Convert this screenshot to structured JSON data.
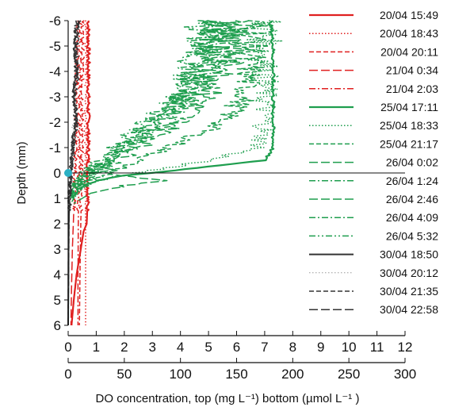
{
  "chart_data": {
    "type": "line",
    "orientation": "depth-profile",
    "ylabel": "Depth (mm)",
    "xlabel": "DO concentration, top (mg L⁻¹) bottom (µmol L⁻¹ )",
    "ylim": [
      -6,
      6
    ],
    "y_inverted": true,
    "xlim_top_mg_per_L": [
      0,
      12
    ],
    "xlim_bottom_umol_per_L": [
      0,
      300
    ],
    "y_ticks": [
      "-6",
      "-5",
      "-4",
      "-3",
      "-2",
      "-1",
      "0",
      "1",
      "2",
      "3",
      "4",
      "5",
      "6"
    ],
    "x_ticks_mg": [
      "0",
      "1",
      "2",
      "3",
      "4",
      "5",
      "6",
      "7",
      "8",
      "9",
      "10",
      "11",
      "12"
    ],
    "x_ticks_umol": [
      "0",
      "50",
      "100",
      "150",
      "200",
      "250",
      "300"
    ],
    "grid": false,
    "legend_position": "right",
    "marker": {
      "x": 0,
      "y": 0,
      "color": "#2ab0c4"
    },
    "surface_line_y": 0,
    "series": [
      {
        "name": "20/04 15:49",
        "color": "#e02020",
        "dash": "solid",
        "width": 2.2,
        "points": [
          [
            0.72,
            -6
          ],
          [
            0.72,
            -3
          ],
          [
            0.71,
            0
          ],
          [
            0.7,
            1
          ],
          [
            0.66,
            2
          ],
          [
            0.55,
            2.3
          ],
          [
            0.45,
            3
          ],
          [
            0.3,
            4
          ],
          [
            0.2,
            5
          ],
          [
            0.12,
            6
          ]
        ]
      },
      {
        "name": "20/04 18:43",
        "color": "#e02020",
        "dash": "dot",
        "width": 1.5,
        "points": [
          [
            0.65,
            -6
          ],
          [
            0.64,
            -2
          ],
          [
            0.63,
            0
          ],
          [
            0.62,
            2
          ],
          [
            0.62,
            4
          ],
          [
            0.62,
            6
          ]
        ]
      },
      {
        "name": "20/04 20:11",
        "color": "#e02020",
        "dash": "dash",
        "width": 1.5,
        "points": [
          [
            0.52,
            -6
          ],
          [
            0.5,
            -2
          ],
          [
            0.48,
            0
          ],
          [
            0.45,
            2
          ],
          [
            0.42,
            4
          ],
          [
            0.4,
            6
          ]
        ]
      },
      {
        "name": "21/04 0:34",
        "color": "#e02020",
        "dash": "longdash",
        "width": 1.5,
        "points": [
          [
            0.35,
            -6
          ],
          [
            0.3,
            -4
          ],
          [
            0.28,
            -2
          ],
          [
            0.25,
            0
          ],
          [
            0.2,
            1.5
          ],
          [
            0.15,
            3
          ],
          [
            0.12,
            4.5
          ],
          [
            0.1,
            6
          ]
        ]
      },
      {
        "name": "21/04 2:03",
        "color": "#e02020",
        "dash": "dashdot",
        "width": 1.5,
        "points": [
          [
            0.45,
            -6
          ],
          [
            0.42,
            -4
          ],
          [
            0.4,
            -2
          ],
          [
            0.38,
            0
          ],
          [
            0.36,
            2
          ],
          [
            0.35,
            4
          ],
          [
            0.35,
            6
          ]
        ]
      },
      {
        "name": "25/04 17:11",
        "color": "#1e9e4e",
        "dash": "solid",
        "width": 2.2,
        "points": [
          [
            7.2,
            -6
          ],
          [
            7.3,
            -5
          ],
          [
            7.3,
            -4
          ],
          [
            7.3,
            -3
          ],
          [
            7.3,
            -2
          ],
          [
            7.3,
            -1
          ],
          [
            7.0,
            -0.5
          ],
          [
            5.0,
            -0.25
          ],
          [
            3.0,
            0
          ],
          [
            2.0,
            0.1
          ],
          [
            1.0,
            0.3
          ],
          [
            0.4,
            0.6
          ],
          [
            0.15,
            1
          ]
        ]
      },
      {
        "name": "25/04 18:33",
        "color": "#1e9e4e",
        "dash": "dot",
        "width": 1.5,
        "points": [
          [
            7.0,
            -6
          ],
          [
            7.0,
            -4
          ],
          [
            7.0,
            -2
          ],
          [
            6.8,
            -1
          ],
          [
            5.0,
            -0.5
          ],
          [
            3.0,
            -0.1
          ],
          [
            1.5,
            0.2
          ],
          [
            0.6,
            0.5
          ],
          [
            0.2,
            1
          ]
        ]
      },
      {
        "name": "25/04 21:17",
        "color": "#1e9e4e",
        "dash": "dash",
        "width": 1.5,
        "points": [
          [
            6.6,
            -6
          ],
          [
            6.5,
            -4.5
          ],
          [
            6.3,
            -3
          ],
          [
            5.5,
            -2
          ],
          [
            4.0,
            -1.2
          ],
          [
            2.5,
            -0.5
          ],
          [
            1.5,
            0
          ],
          [
            0.8,
            0.3
          ],
          [
            0.3,
            0.8
          ],
          [
            0.1,
            1.2
          ]
        ]
      },
      {
        "name": "26/04 0:02",
        "color": "#1e9e4e",
        "dash": "longdash",
        "width": 1.5,
        "points": [
          [
            6.2,
            -6
          ],
          [
            5.8,
            -4.5
          ],
          [
            5.0,
            -3
          ],
          [
            4.0,
            -2
          ],
          [
            3.0,
            -1.3
          ],
          [
            2.0,
            -0.6
          ],
          [
            1.2,
            0
          ],
          [
            3.5,
            0.3
          ],
          [
            2.0,
            0.5
          ],
          [
            0.8,
            0.8
          ],
          [
            0.2,
            1.2
          ]
        ]
      },
      {
        "name": "26/04 1:24",
        "color": "#1e9e4e",
        "dash": "dashdot",
        "width": 1.5,
        "points": [
          [
            5.8,
            -6
          ],
          [
            5.5,
            -4.5
          ],
          [
            4.5,
            -3
          ],
          [
            3.5,
            -2
          ],
          [
            2.5,
            -1.3
          ],
          [
            1.6,
            -0.6
          ],
          [
            0.9,
            0
          ],
          [
            0.4,
            0.5
          ],
          [
            0.1,
            1
          ]
        ]
      },
      {
        "name": "26/04 2:46",
        "color": "#1e9e4e",
        "dash": "longdash",
        "width": 1.5,
        "points": [
          [
            5.5,
            -6
          ],
          [
            5.0,
            -4.5
          ],
          [
            4.2,
            -3
          ],
          [
            3.2,
            -2
          ],
          [
            2.4,
            -1.3
          ],
          [
            1.5,
            -0.6
          ],
          [
            0.8,
            0
          ],
          [
            0.3,
            0.5
          ],
          [
            0.1,
            1
          ]
        ]
      },
      {
        "name": "26/04 4:09",
        "color": "#1e9e4e",
        "dash": "dashdot",
        "width": 1.5,
        "points": [
          [
            5.2,
            -6
          ],
          [
            4.8,
            -4.5
          ],
          [
            4.0,
            -3
          ],
          [
            3.0,
            -2
          ],
          [
            2.2,
            -1.3
          ],
          [
            1.4,
            -0.6
          ],
          [
            0.7,
            0
          ],
          [
            0.25,
            0.5
          ],
          [
            0.08,
            1
          ]
        ]
      },
      {
        "name": "26/04 5:32",
        "color": "#1e9e4e",
        "dash": "dashdotdot",
        "width": 1.5,
        "points": [
          [
            4.8,
            -6
          ],
          [
            4.5,
            -4.5
          ],
          [
            3.8,
            -3
          ],
          [
            2.8,
            -2
          ],
          [
            2.0,
            -1.3
          ],
          [
            1.2,
            -0.6
          ],
          [
            0.6,
            0
          ],
          [
            0.2,
            0.5
          ],
          [
            0.05,
            1
          ]
        ]
      },
      {
        "name": "30/04 18:50",
        "color": "#333333",
        "dash": "solid",
        "width": 2.0,
        "points": [
          [
            0.35,
            -6
          ],
          [
            0.25,
            -5
          ],
          [
            0.3,
            -4
          ],
          [
            0.2,
            -3
          ],
          [
            0.3,
            -2
          ],
          [
            0.15,
            -1
          ],
          [
            0.1,
            0
          ],
          [
            0.05,
            1
          ],
          [
            0.02,
            2
          ],
          [
            0.0,
            6
          ]
        ]
      },
      {
        "name": "30/04 20:12",
        "color": "#999999",
        "dash": "dot",
        "width": 1.0,
        "points": [
          [
            0.3,
            -6
          ],
          [
            0.25,
            -4
          ],
          [
            0.2,
            -2
          ],
          [
            0.1,
            0
          ],
          [
            0.03,
            1
          ],
          [
            0.0,
            6
          ]
        ]
      },
      {
        "name": "30/04 21:35",
        "color": "#333333",
        "dash": "dash",
        "width": 1.5,
        "points": [
          [
            0.4,
            -6
          ],
          [
            0.3,
            -5
          ],
          [
            0.35,
            -4
          ],
          [
            0.25,
            -3
          ],
          [
            0.3,
            -2
          ],
          [
            0.2,
            -1
          ],
          [
            0.1,
            0
          ],
          [
            0.04,
            1
          ],
          [
            0.0,
            6
          ]
        ]
      },
      {
        "name": "30/04 22:58",
        "color": "#333333",
        "dash": "longdash",
        "width": 1.5,
        "points": [
          [
            0.3,
            -6
          ],
          [
            0.22,
            -5
          ],
          [
            0.28,
            -4
          ],
          [
            0.18,
            -3
          ],
          [
            0.25,
            -2
          ],
          [
            0.15,
            -1
          ],
          [
            0.08,
            0
          ],
          [
            0.03,
            1
          ],
          [
            0.0,
            6
          ]
        ]
      }
    ]
  }
}
